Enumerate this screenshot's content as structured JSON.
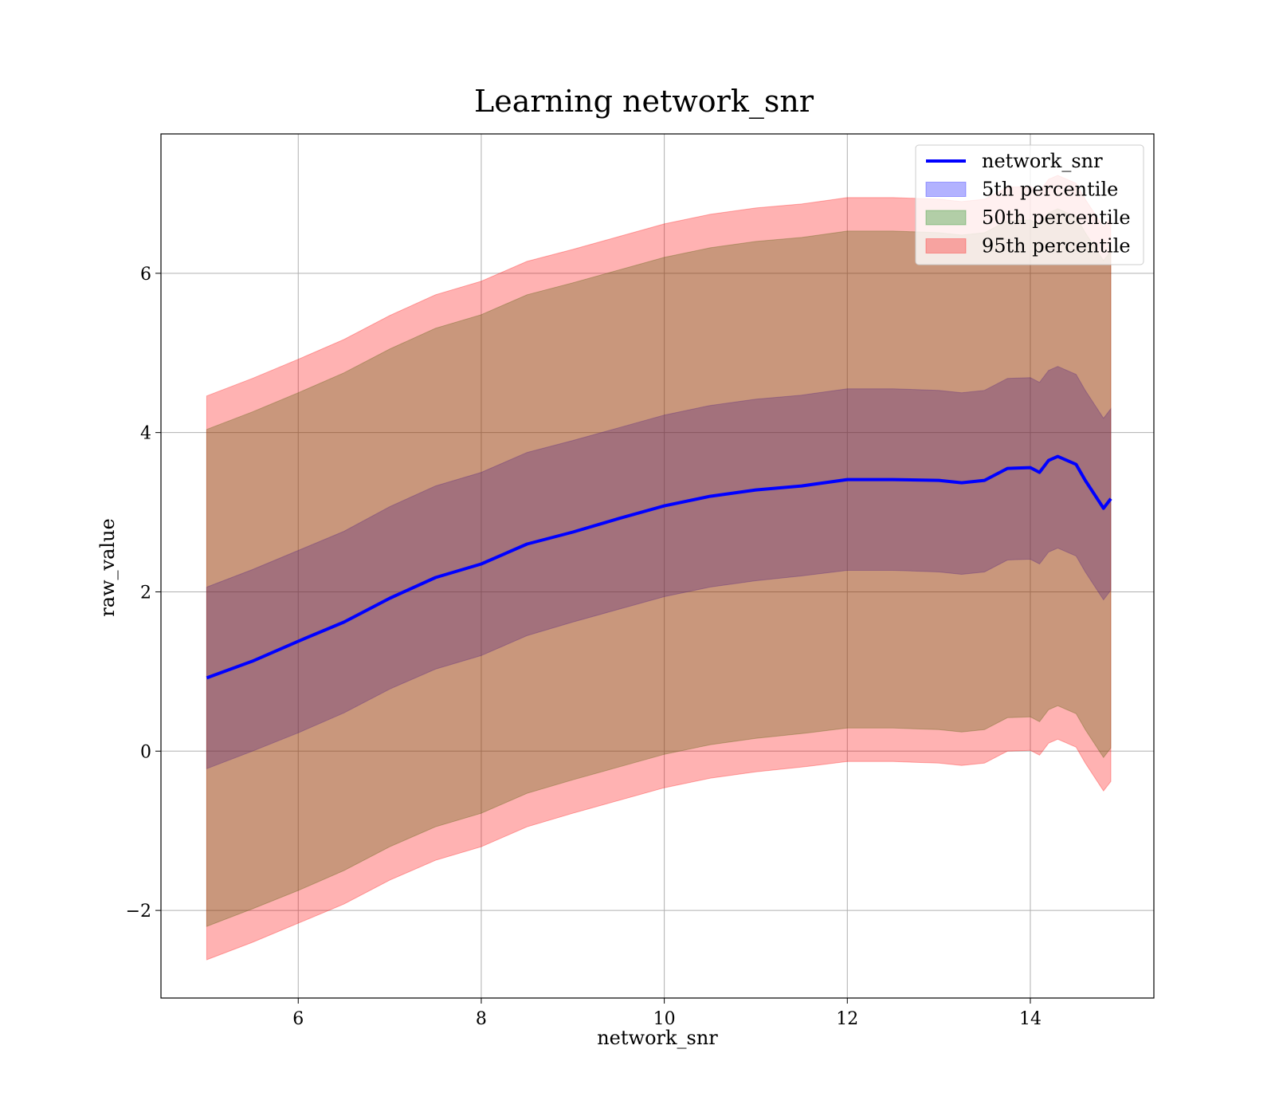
{
  "chart_data": {
    "type": "line",
    "title": "Learning network_snr",
    "xlabel": "network_snr",
    "ylabel": "raw_value",
    "xlim": [
      4.5,
      15.35
    ],
    "ylim": [
      -3.1,
      7.75
    ],
    "xticks": [
      6,
      8,
      10,
      12,
      14
    ],
    "yticks": [
      -2,
      0,
      2,
      4,
      6
    ],
    "xtick_labels": [
      "6",
      "8",
      "10",
      "12",
      "14"
    ],
    "ytick_labels": [
      "−2",
      "0",
      "2",
      "4",
      "6"
    ],
    "grid": true,
    "legend_position": "top-right",
    "legend": [
      {
        "label": "network_snr",
        "kind": "line",
        "color": "#0000ff"
      },
      {
        "label": "5th percentile",
        "kind": "patch",
        "color": "#0000ff"
      },
      {
        "label": "50th percentile",
        "kind": "patch",
        "color": "#008000"
      },
      {
        "label": "95th percentile",
        "kind": "patch",
        "color": "#ff0000"
      }
    ],
    "x": [
      5.0,
      5.5,
      6.0,
      6.5,
      7.0,
      7.5,
      8.0,
      8.5,
      9.0,
      9.5,
      10.0,
      10.5,
      11.0,
      11.5,
      12.0,
      12.5,
      13.0,
      13.25,
      13.5,
      13.75,
      14.0,
      14.1,
      14.2,
      14.3,
      14.5,
      14.6,
      14.8,
      14.88
    ],
    "series": [
      {
        "name": "network_snr",
        "kind": "line",
        "color": "#0000ff",
        "values": [
          0.92,
          1.13,
          1.38,
          1.62,
          1.92,
          2.18,
          2.35,
          2.6,
          2.75,
          2.92,
          3.08,
          3.2,
          3.28,
          3.33,
          3.41,
          3.41,
          3.4,
          3.37,
          3.4,
          3.55,
          3.56,
          3.5,
          3.65,
          3.7,
          3.6,
          3.4,
          3.05,
          3.17
        ]
      },
      {
        "name": "5th percentile",
        "kind": "band",
        "color": "#0000ff",
        "lower": [
          -0.22,
          0.0,
          0.23,
          0.48,
          0.78,
          1.03,
          1.2,
          1.45,
          1.62,
          1.78,
          1.94,
          2.06,
          2.14,
          2.2,
          2.27,
          2.27,
          2.25,
          2.22,
          2.25,
          2.4,
          2.41,
          2.35,
          2.5,
          2.55,
          2.45,
          2.25,
          1.9,
          2.02
        ],
        "upper": [
          2.06,
          2.28,
          2.52,
          2.76,
          3.07,
          3.33,
          3.5,
          3.75,
          3.9,
          4.06,
          4.22,
          4.34,
          4.42,
          4.47,
          4.55,
          4.55,
          4.53,
          4.5,
          4.53,
          4.68,
          4.69,
          4.63,
          4.78,
          4.83,
          4.73,
          4.53,
          4.18,
          4.3
        ]
      },
      {
        "name": "50th percentile",
        "kind": "band",
        "color": "#008000",
        "lower": [
          -2.2,
          -1.98,
          -1.75,
          -1.5,
          -1.2,
          -0.95,
          -0.78,
          -0.53,
          -0.36,
          -0.2,
          -0.04,
          0.08,
          0.16,
          0.22,
          0.29,
          0.29,
          0.27,
          0.24,
          0.27,
          0.42,
          0.43,
          0.37,
          0.52,
          0.57,
          0.47,
          0.27,
          -0.08,
          0.04
        ],
        "upper": [
          4.04,
          4.26,
          4.5,
          4.75,
          5.05,
          5.31,
          5.48,
          5.73,
          5.88,
          6.04,
          6.2,
          6.32,
          6.4,
          6.45,
          6.53,
          6.53,
          6.51,
          6.48,
          6.51,
          6.66,
          6.67,
          6.61,
          6.76,
          6.81,
          6.71,
          6.51,
          6.16,
          6.28
        ]
      },
      {
        "name": "95th percentile",
        "kind": "band",
        "color": "#ff0000",
        "lower": [
          -2.62,
          -2.4,
          -2.16,
          -1.92,
          -1.62,
          -1.37,
          -1.2,
          -0.95,
          -0.78,
          -0.62,
          -0.46,
          -0.34,
          -0.26,
          -0.2,
          -0.13,
          -0.13,
          -0.15,
          -0.18,
          -0.15,
          0.0,
          0.01,
          -0.05,
          0.1,
          0.15,
          0.05,
          -0.15,
          -0.5,
          -0.38
        ],
        "upper": [
          4.46,
          4.68,
          4.92,
          5.17,
          5.47,
          5.73,
          5.9,
          6.15,
          6.3,
          6.46,
          6.62,
          6.74,
          6.82,
          6.87,
          6.95,
          6.95,
          6.93,
          6.9,
          6.93,
          7.08,
          7.09,
          7.03,
          7.18,
          7.23,
          7.13,
          6.93,
          6.58,
          6.7
        ]
      }
    ]
  }
}
